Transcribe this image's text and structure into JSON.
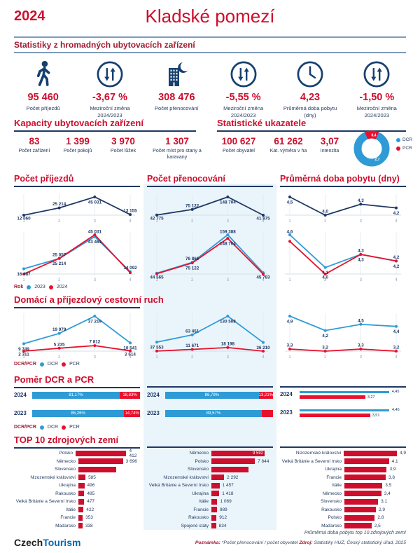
{
  "header": {
    "year": "2024",
    "title": "Kladské pomezí",
    "subtitle": "Statistiky z hromadných ubytovacích zařízení"
  },
  "colors": {
    "red": "#CE0E2D",
    "line_red": "#E8112D",
    "navy": "#1F3864",
    "blue": "#2E9BD6",
    "panel": "#EAF5FB"
  },
  "kpi_row": [
    {
      "icon": "walker-icon",
      "value": "95 460",
      "label": "Počet příjezdů",
      "label2": ""
    },
    {
      "icon": "updown-arrows-icon",
      "value": "-3,67 %",
      "label": "Meziroční změna",
      "label2": "2024/2023"
    },
    {
      "icon": "building-moon-icon",
      "value": "308 476",
      "label": "Počet přenocování",
      "label2": ""
    },
    {
      "icon": "updown-arrows-icon",
      "value": "-5,55 %",
      "label": "Meziroční změna",
      "label2": "2024/2023"
    },
    {
      "icon": "clock-icon",
      "value": "4,23",
      "label": "Průměrná doba pobytu",
      "label2": "(dny)"
    },
    {
      "icon": "updown-arrows-icon",
      "value": "-1,50 %",
      "label": "Meziroční změna",
      "label2": "2024/2023"
    }
  ],
  "capacities": {
    "title": "Kapacity ubytovacích zařízení",
    "items": [
      {
        "value": "83",
        "label": "Počet zařízení"
      },
      {
        "value": "1 399",
        "label": "Počet pokojů"
      },
      {
        "value": "3 970",
        "label": "Počet lůžek"
      },
      {
        "value": "1 307",
        "label": "Počet míst pro stany a karavany"
      }
    ]
  },
  "indicators": {
    "title": "Statistické ukazatele",
    "items": [
      {
        "value": "100 627",
        "label": "Počet obyvatel"
      },
      {
        "value": "61 262",
        "label": "Kat. výměra v ha"
      },
      {
        "value": "3,07",
        "label": "Intenzita"
      }
    ],
    "donut": {
      "dcr_value": 2.7,
      "pcr_value": 0.4,
      "dcr_label": "2,7",
      "pcr_label": "0,4",
      "legend": [
        "DCR",
        "PCR"
      ]
    }
  },
  "legends": {
    "rok_label": "Rok",
    "years": [
      "2023",
      "2024"
    ],
    "dcrpcr_label": "DCR/PCR",
    "dcrpcr": [
      "DCR",
      "PCR"
    ]
  },
  "sections": {
    "domaci": "Domácí a příjezdový cestovní ruch",
    "pomer": "Poměr DCR a PCR",
    "top10": "TOP 10 zdrojových zemí"
  },
  "chart_data": [
    {
      "id": "prijezdy-2024",
      "type": "line",
      "title": "Počet příjezdů",
      "x": [
        "1",
        "2",
        "3",
        "4"
      ],
      "series": [
        {
          "name": "2024",
          "color": "#1F3864",
          "values": [
            12060,
            25214,
            45031,
            13155
          ],
          "labels": [
            "12 060",
            "25 214",
            "45 031",
            "13 155"
          ],
          "pos": [
            "d",
            "u",
            "d",
            "u"
          ]
        }
      ]
    },
    {
      "id": "prijezdy-roky",
      "type": "line",
      "x": [
        "1",
        "2",
        "3",
        "4"
      ],
      "series": [
        {
          "name": "2023",
          "color": "#2E9BD6",
          "values": [
            16487,
            25057,
            43461,
            14092
          ],
          "labels": [
            "16 487",
            "25 057",
            "43 461",
            "14 092"
          ],
          "pos": [
            "d",
            "u",
            "d",
            "u"
          ]
        },
        {
          "name": "2024",
          "color": "#E8112D",
          "values": [
            12060,
            25214,
            45031,
            13155
          ],
          "labels": [
            null,
            "25 214",
            "45 031",
            null
          ],
          "pos": [
            "d",
            "d",
            "u",
            "d"
          ]
        }
      ]
    },
    {
      "id": "prenocovani-2024",
      "type": "line",
      "title": "Počet přenocování",
      "x": [
        "1",
        "2",
        "3",
        "4"
      ],
      "series": [
        {
          "name": "2024",
          "color": "#1F3864",
          "values": [
            42775,
            75122,
            148704,
            41875
          ],
          "labels": [
            "42 775",
            "75 122",
            "148 704",
            "41 875"
          ],
          "pos": [
            "d",
            "u",
            "d",
            "d"
          ]
        }
      ]
    },
    {
      "id": "prenocovani-roky",
      "type": "line",
      "x": [
        "1",
        "2",
        "3",
        "4"
      ],
      "series": [
        {
          "name": "2023",
          "color": "#2E9BD6",
          "values": [
            44565,
            76866,
            159388,
            45783
          ],
          "labels": [
            "44 565",
            "76 866",
            "159 388",
            "45 783"
          ],
          "pos": [
            "d",
            "u",
            "u",
            "d"
          ]
        },
        {
          "name": "2024",
          "color": "#E8112D",
          "values": [
            42775,
            75122,
            148704,
            41875
          ],
          "labels": [
            null,
            "75 122",
            "148 704",
            null
          ],
          "pos": [
            "d",
            "d",
            "d",
            "d"
          ]
        }
      ]
    },
    {
      "id": "doba-2024",
      "type": "line",
      "title": "Průměrná doba pobytu (dny)",
      "x": [
        "1",
        "2",
        "3",
        "4"
      ],
      "series": [
        {
          "name": "2024",
          "color": "#1F3864",
          "values": [
            4.5,
            4.0,
            4.3,
            4.2
          ],
          "labels": [
            "4,5",
            "4,0",
            "4,3",
            "4,2"
          ],
          "pos": [
            "d",
            "u",
            "u",
            "d"
          ]
        }
      ]
    },
    {
      "id": "doba-roky",
      "type": "line",
      "x": [
        "1",
        "2",
        "3",
        "4"
      ],
      "series": [
        {
          "name": "2023",
          "color": "#2E9BD6",
          "values": [
            4.6,
            4.1,
            4.3,
            4.2
          ],
          "labels": [
            "4,6",
            "4,1",
            "4,3",
            "4,2"
          ],
          "pos": [
            "u",
            "d",
            "u",
            "u"
          ]
        },
        {
          "name": "2024",
          "color": "#E8112D",
          "values": [
            4.5,
            4.0,
            4.3,
            4.2
          ],
          "labels": [
            null,
            "4,0",
            "4,3",
            "4,2"
          ],
          "pos": [
            "d",
            "d",
            "d",
            "d"
          ]
        }
      ]
    },
    {
      "id": "dcr-prijezdy",
      "type": "line",
      "x": [
        "1",
        "2",
        "3",
        "4"
      ],
      "series": [
        {
          "name": "DCR",
          "color": "#2E9BD6",
          "values": [
            9749,
            19979,
            37219,
            10541
          ],
          "labels": [
            "9 749",
            "19 979",
            "37 219",
            "10 541"
          ],
          "pos": [
            "d",
            "u",
            "d",
            "d"
          ]
        },
        {
          "name": "PCR",
          "color": "#E8112D",
          "values": [
            2311,
            5235,
            7812,
            2614
          ],
          "labels": [
            "2 311",
            "5 235",
            "7 812",
            "2 614"
          ],
          "pos": [
            "d",
            "u",
            "u",
            "d"
          ]
        }
      ]
    },
    {
      "id": "dcr-prenocovani",
      "type": "line",
      "x": [
        "1",
        "2",
        "3",
        "4"
      ],
      "series": [
        {
          "name": "DCR",
          "color": "#2E9BD6",
          "values": [
            37553,
            63451,
            130508,
            36210
          ],
          "labels": [
            "37 553",
            "63 451",
            "130 508",
            "36 210"
          ],
          "pos": [
            "d",
            "u",
            "d",
            "d"
          ]
        },
        {
          "name": "PCR",
          "color": "#E8112D",
          "values": [
            5560,
            11671,
            18198,
            5325
          ],
          "labels": [
            null,
            "11 671",
            "18 198",
            null
          ],
          "pos": [
            "d",
            "u",
            "u",
            "d"
          ]
        }
      ]
    },
    {
      "id": "dcr-doba",
      "type": "line",
      "x": [
        "1",
        "2",
        "3",
        "4"
      ],
      "series": [
        {
          "name": "DCR",
          "color": "#2E9BD6",
          "values": [
            4.9,
            4.2,
            4.5,
            4.4
          ],
          "labels": [
            "4,9",
            "4,2",
            "4,5",
            "4,4"
          ],
          "pos": [
            "d",
            "d",
            "u",
            "d"
          ]
        },
        {
          "name": "PCR",
          "color": "#E8112D",
          "values": [
            3.3,
            3.2,
            3.3,
            3.2
          ],
          "labels": [
            "3,3",
            "3,2",
            "3,3",
            "3,2"
          ],
          "pos": [
            "u",
            "u",
            "u",
            "u"
          ]
        }
      ]
    },
    {
      "id": "pomer-prijezdy",
      "type": "stacked_bar",
      "rows": [
        {
          "year": "2024",
          "dcr": 81.17,
          "pcr": 18.83,
          "dcr_label": "81,17%",
          "pcr_label": "18,83%"
        },
        {
          "year": "2023",
          "dcr": 85.26,
          "pcr": 14.74,
          "dcr_label": "85,26%",
          "pcr_label": "14,74%"
        }
      ]
    },
    {
      "id": "pomer-prenocovani",
      "type": "stacked_bar",
      "rows": [
        {
          "year": "2024",
          "dcr": 86.79,
          "pcr": 13.21,
          "dcr_label": "86,79%",
          "pcr_label": "13,21%"
        },
        {
          "year": "2023",
          "dcr": 89.57,
          "pcr": 10.43,
          "dcr_label": "89,57%",
          "pcr_label": ""
        }
      ]
    },
    {
      "id": "pomer-doba",
      "type": "pair_bar",
      "max": 4.6,
      "rows": [
        {
          "year": "2024",
          "dcr": 4.45,
          "pcr": 3.27,
          "dcr_label": "4,45",
          "pcr_label": "3,27"
        },
        {
          "year": "2023",
          "dcr": 4.46,
          "pcr": 3.51,
          "dcr_label": "4,46",
          "pcr_label": "3,51"
        }
      ]
    },
    {
      "id": "top10-prijezdy",
      "type": "bar",
      "rows": [
        {
          "label": "Polsko",
          "value": 4412,
          "value_label": "4 412"
        },
        {
          "label": "Německo",
          "value": 3696,
          "value_label": "3 696"
        },
        {
          "label": "Slovensko",
          "value": 3150,
          "value_label": ""
        },
        {
          "label": "Nizozemské království",
          "value": 585,
          "value_label": "585"
        },
        {
          "label": "Ukrajina",
          "value": 496,
          "value_label": "496"
        },
        {
          "label": "Rakousko",
          "value": 485,
          "value_label": "485"
        },
        {
          "label": "Velká Británie a Severní Irsko",
          "value": 477,
          "value_label": "477"
        },
        {
          "label": "Itálie",
          "value": 422,
          "value_label": "422"
        },
        {
          "label": "Francie",
          "value": 353,
          "value_label": "353"
        },
        {
          "label": "Maďarsko",
          "value": 338,
          "value_label": "338"
        }
      ]
    },
    {
      "id": "top10-prenocovani",
      "type": "bar",
      "rows": [
        {
          "label": "Německo",
          "value": 9592,
          "value_label": "9 592",
          "inside": true
        },
        {
          "label": "Polsko",
          "value": 7844,
          "value_label": "7 844"
        },
        {
          "label": "Slovensko",
          "value": 6750,
          "value_label": ""
        },
        {
          "label": "Nizozemské království",
          "value": 2292,
          "value_label": "2 292"
        },
        {
          "label": "Velká Británie a Severní Irsko",
          "value": 1457,
          "value_label": "1 457"
        },
        {
          "label": "Ukrajina",
          "value": 1418,
          "value_label": "1 418"
        },
        {
          "label": "Itálie",
          "value": 1069,
          "value_label": "1 069"
        },
        {
          "label": "Francie",
          "value": 989,
          "value_label": "989"
        },
        {
          "label": "Rakousko",
          "value": 912,
          "value_label": "912"
        },
        {
          "label": "Spojené státy",
          "value": 834,
          "value_label": "834"
        }
      ]
    },
    {
      "id": "top10-doba",
      "type": "bar",
      "rows": [
        {
          "label": "Nizozemské království",
          "value": 4.9,
          "value_label": "4,9"
        },
        {
          "label": "Velká Británie a Severní Irsko",
          "value": 4.1,
          "value_label": "4,1"
        },
        {
          "label": "Ukrajina",
          "value": 3.9,
          "value_label": "3,9"
        },
        {
          "label": "Francie",
          "value": 3.8,
          "value_label": "3,8"
        },
        {
          "label": "Itálie",
          "value": 3.5,
          "value_label": "3,5"
        },
        {
          "label": "Německo",
          "value": 3.4,
          "value_label": "3,4"
        },
        {
          "label": "Slovensko",
          "value": 3.1,
          "value_label": "3,1"
        },
        {
          "label": "Rakousko",
          "value": 2.9,
          "value_label": "2,9"
        },
        {
          "label": "Polsko",
          "value": 2.8,
          "value_label": "2,8"
        },
        {
          "label": "Maďarsko",
          "value": 2.5,
          "value_label": "2,5"
        }
      ]
    }
  ],
  "footer": {
    "logo_part1": "Czech",
    "logo_part2": "Tourism",
    "right_note": "Průměrná doba pobytu top 10 zdrojových zemí",
    "poznamka_label": "Poznámka:",
    "poznamka_text": "*Počet přenocování / počet obyvatel",
    "zdroj_label": "Zdroj:",
    "zdroj_text": "Statistiky HUZ, Český statistický úřad, 2025"
  }
}
